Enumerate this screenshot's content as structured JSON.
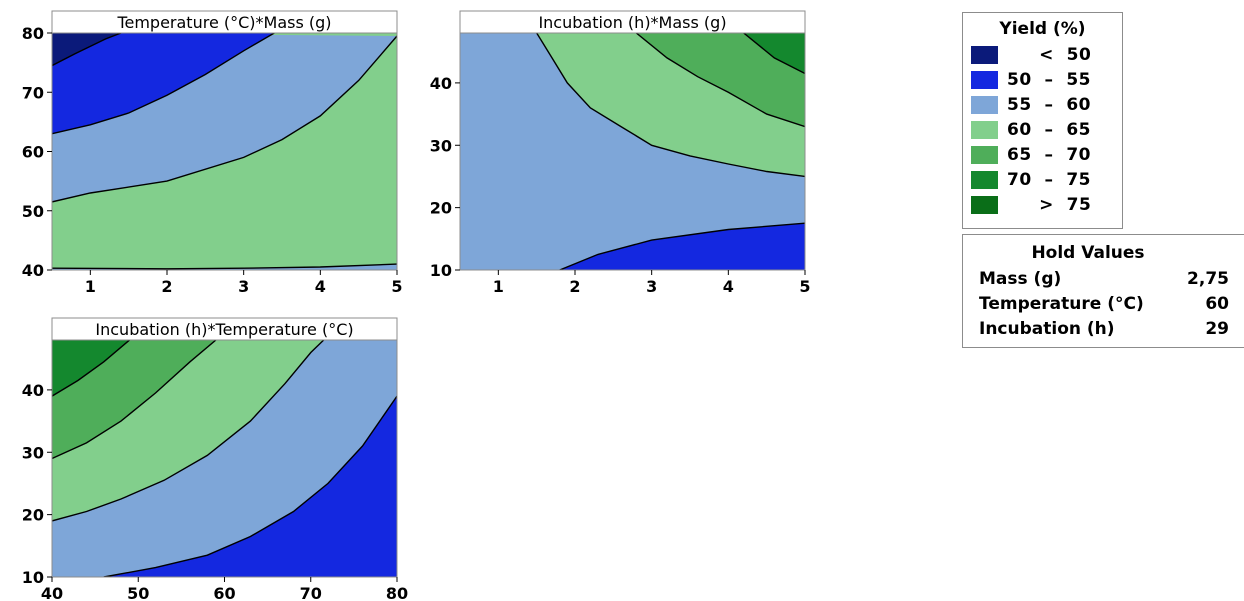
{
  "colors": {
    "lt50": "#0b1a7a",
    "b50_55": "#1428e0",
    "b55_60": "#7ea6d8",
    "b60_65": "#82cf8c",
    "b65_70": "#4fae5a",
    "b70_75": "#14882e",
    "gt75": "#0a6e18"
  },
  "legend": {
    "title": "Yield (%)",
    "items": [
      {
        "label": "     <  50",
        "color": "#0b1a7a"
      },
      {
        "label": "50  –  55",
        "color": "#1428e0"
      },
      {
        "label": "55  –  60",
        "color": "#7ea6d8"
      },
      {
        "label": "60  –  65",
        "color": "#82cf8c"
      },
      {
        "label": "65  –  70",
        "color": "#4fae5a"
      },
      {
        "label": "70  –  75",
        "color": "#14882e"
      },
      {
        "label": "     >  75",
        "color": "#0a6e18"
      }
    ]
  },
  "hold_values": {
    "title": "Hold Values",
    "rows": [
      {
        "name": "Mass (g)",
        "value": "2,75"
      },
      {
        "name": "Temperature (°C)",
        "value": "60"
      },
      {
        "name": "Incubation (h)",
        "value": "29"
      }
    ]
  },
  "chart_data": [
    {
      "type": "contour",
      "title": "Temperature (°C)*Mass (g)",
      "xlabel": "",
      "ylabel": "",
      "xlim": [
        0.5,
        5
      ],
      "ylim": [
        40,
        80
      ],
      "xticks": [
        1,
        2,
        3,
        4,
        5
      ],
      "yticks": [
        40,
        50,
        60,
        70,
        80
      ],
      "contours": [
        {
          "level": 50,
          "points": [
            [
              0.5,
              74.5
            ],
            [
              0.8,
              76.5
            ],
            [
              1.2,
              79
            ],
            [
              1.4,
              80
            ]
          ]
        },
        {
          "level": 55,
          "points": [
            [
              0.5,
              63
            ],
            [
              1,
              64.5
            ],
            [
              1.5,
              66.5
            ],
            [
              2,
              69.5
            ],
            [
              2.5,
              73
            ],
            [
              3,
              77
            ],
            [
              3.4,
              80
            ]
          ]
        },
        {
          "level": 60,
          "points": [
            [
              0.5,
              51.5
            ],
            [
              1,
              53
            ],
            [
              2,
              55
            ],
            [
              3,
              59
            ],
            [
              3.5,
              62
            ],
            [
              4,
              66
            ],
            [
              4.5,
              72
            ],
            [
              5,
              79.5
            ]
          ]
        },
        {
          "level": 65,
          "points": [
            [
              0.5,
              40.3
            ],
            [
              2,
              40.2
            ],
            [
              3,
              40.3
            ],
            [
              4,
              40.5
            ],
            [
              5,
              41
            ]
          ]
        }
      ],
      "regions": [
        {
          "band": "< 50",
          "color": "#0b1a7a"
        },
        {
          "band": "50 – 55",
          "color": "#1428e0"
        },
        {
          "band": "55 – 60",
          "color": "#7ea6d8"
        },
        {
          "band": "60 – 65",
          "color": "#82cf8c"
        }
      ]
    },
    {
      "type": "contour",
      "title": "Incubation (h)*Mass (g)",
      "xlabel": "",
      "ylabel": "",
      "xlim": [
        0.5,
        5
      ],
      "ylim": [
        10,
        48
      ],
      "xticks": [
        1,
        2,
        3,
        4,
        5
      ],
      "yticks": [
        10,
        20,
        30,
        40
      ],
      "contours": [
        {
          "level": 55,
          "points": [
            [
              1.8,
              10
            ],
            [
              2.3,
              12.5
            ],
            [
              3,
              14.8
            ],
            [
              4,
              16.5
            ],
            [
              5,
              17.5
            ]
          ]
        },
        {
          "level": 60,
          "points": [
            [
              1.5,
              48
            ],
            [
              1.7,
              44
            ],
            [
              1.9,
              40
            ],
            [
              2.2,
              36
            ],
            [
              2.6,
              33
            ],
            [
              3,
              30
            ],
            [
              3.5,
              28.3
            ],
            [
              4,
              27
            ],
            [
              4.5,
              25.8
            ],
            [
              5,
              25
            ]
          ]
        },
        {
          "level": 65,
          "points": [
            [
              2.8,
              48
            ],
            [
              3.2,
              44
            ],
            [
              3.6,
              41
            ],
            [
              4,
              38.5
            ],
            [
              4.5,
              35
            ],
            [
              5,
              33
            ]
          ]
        },
        {
          "level": 70,
          "points": [
            [
              4.2,
              48
            ],
            [
              4.6,
              44
            ],
            [
              5,
              41.5
            ]
          ]
        }
      ],
      "regions": [
        {
          "band": "50 – 55",
          "color": "#1428e0"
        },
        {
          "band": "55 – 60",
          "color": "#7ea6d8"
        },
        {
          "band": "60 – 65",
          "color": "#82cf8c"
        },
        {
          "band": "65 – 70",
          "color": "#4fae5a"
        },
        {
          "band": "70 – 75",
          "color": "#14882e"
        }
      ]
    },
    {
      "type": "contour",
      "title": "Incubation (h)*Temperature (°C)",
      "xlabel": "",
      "ylabel": "",
      "xlim": [
        40,
        80
      ],
      "ylim": [
        10,
        48
      ],
      "xticks": [
        40,
        50,
        60,
        70,
        80
      ],
      "yticks": [
        10,
        20,
        30,
        40
      ],
      "contours": [
        {
          "level": 55,
          "points": [
            [
              46,
              10
            ],
            [
              52,
              11.5
            ],
            [
              58,
              13.5
            ],
            [
              63,
              16.5
            ],
            [
              68,
              20.5
            ],
            [
              72,
              25
            ],
            [
              76,
              31
            ],
            [
              78.5,
              36
            ],
            [
              80,
              39
            ]
          ]
        },
        {
          "level": 60,
          "points": [
            [
              40,
              19
            ],
            [
              44,
              20.5
            ],
            [
              48,
              22.5
            ],
            [
              53,
              25.5
            ],
            [
              58,
              29.5
            ],
            [
              63,
              35
            ],
            [
              67,
              41
            ],
            [
              70,
              46
            ],
            [
              71.5,
              48
            ]
          ]
        },
        {
          "level": 65,
          "points": [
            [
              40,
              29
            ],
            [
              44,
              31.5
            ],
            [
              48,
              35
            ],
            [
              52,
              39.5
            ],
            [
              56,
              44.5
            ],
            [
              59,
              48
            ]
          ]
        },
        {
          "level": 70,
          "points": [
            [
              40,
              39
            ],
            [
              43,
              41.5
            ],
            [
              46,
              44.5
            ],
            [
              49,
              48
            ]
          ]
        },
        {
          "level": 75,
          "points": [
            [
              40,
              48
            ]
          ]
        }
      ],
      "regions": [
        {
          "band": "50 – 55",
          "color": "#1428e0"
        },
        {
          "band": "55 – 60",
          "color": "#7ea6d8"
        },
        {
          "band": "60 – 65",
          "color": "#82cf8c"
        },
        {
          "band": "65 – 70",
          "color": "#4fae5a"
        },
        {
          "band": "70 – 75",
          "color": "#14882e"
        }
      ]
    }
  ]
}
